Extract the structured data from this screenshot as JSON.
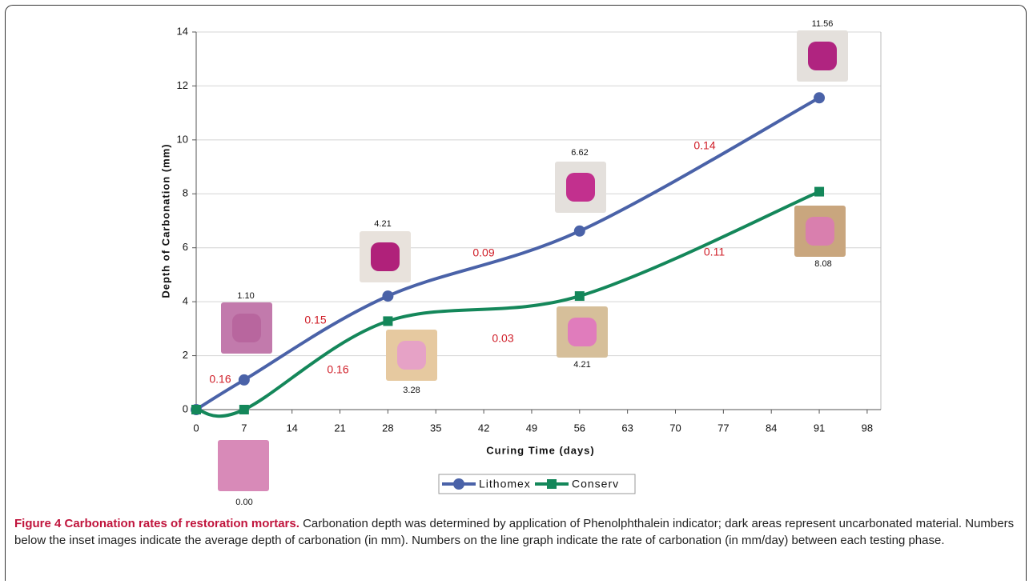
{
  "chart_data": {
    "type": "line",
    "x_label": "Curing Time (days)",
    "y_label": "Depth of Carbonation (mm)",
    "x": [
      0,
      7,
      28,
      56,
      91
    ],
    "series": [
      {
        "name": "Lithomex",
        "color": "#4a62a8",
        "marker": "circle",
        "values": [
          0,
          1.1,
          4.21,
          6.62,
          11.56
        ]
      },
      {
        "name": "Conserv",
        "color": "#14875a",
        "marker": "square",
        "values": [
          0,
          0,
          3.28,
          4.21,
          8.08
        ]
      }
    ],
    "xlim": [
      0,
      100
    ],
    "ylim": [
      0,
      14
    ],
    "xticks": [
      0,
      7,
      14,
      21,
      28,
      35,
      42,
      49,
      56,
      63,
      70,
      77,
      84,
      91,
      98
    ],
    "yticks": [
      0,
      2,
      4,
      6,
      8,
      10,
      12,
      14
    ],
    "grid": true,
    "legend": "bottom",
    "rate_labels": [
      "0.16",
      "0.15",
      "0.16",
      "0.09",
      "0.03",
      "0.14",
      "0.11"
    ],
    "rate_color": "#d0202a",
    "inset_labels": [
      "0.00",
      "1.10",
      "4.21",
      "3.28",
      "6.62",
      "4.21",
      "11.56",
      "8.08"
    ]
  },
  "caption": {
    "label": "Figure 4 Carbonation rates of restoration mortars.",
    "text": "Carbonation depth was determined by application of Phenolphthalein indicator; dark areas represent uncarbonated material. Numbers below the inset images indicate the average depth of carbonation (in mm). Numbers on the line graph indicate the rate of carbonation (in mm/day) between each testing phase."
  }
}
